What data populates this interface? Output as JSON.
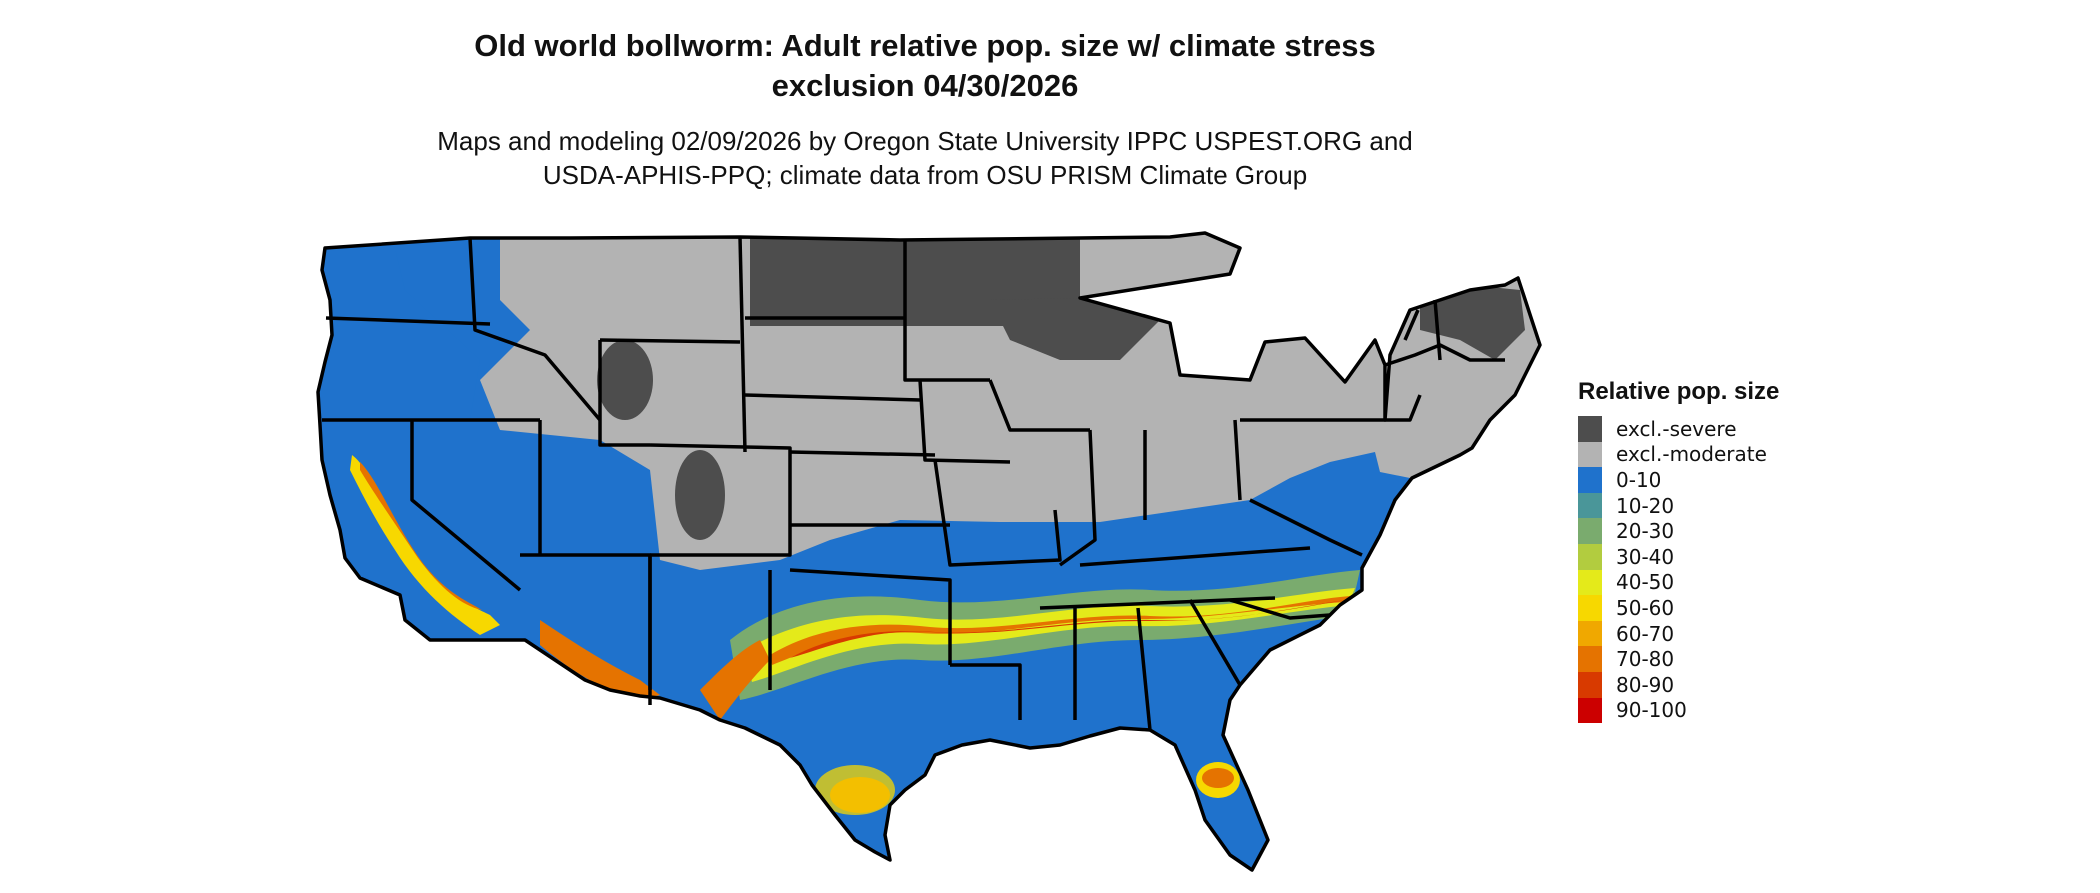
{
  "title": {
    "line1": "Old world bollworm: Adult relative pop. size w/ climate stress",
    "line2": "exclusion 04/30/2026"
  },
  "subtitle": {
    "line1": "Maps and modeling 02/09/2026 by Oregon State University IPPC USPEST.ORG and",
    "line2": "USDA-APHIS-PPQ; climate data from OSU PRISM Climate Group"
  },
  "legend": {
    "title": "Relative pop. size",
    "items": [
      {
        "label": "excl.-severe",
        "color": "#4d4d4d"
      },
      {
        "label": "excl.-moderate",
        "color": "#b3b3b3"
      },
      {
        "label": "0-10",
        "color": "#1f72cc"
      },
      {
        "label": "10-20",
        "color": "#4a9699"
      },
      {
        "label": "20-30",
        "color": "#7aab6e"
      },
      {
        "label": "30-40",
        "color": "#b2cc3f"
      },
      {
        "label": "40-50",
        "color": "#e4ea1a"
      },
      {
        "label": "50-60",
        "color": "#f7d800"
      },
      {
        "label": "60-70",
        "color": "#f0a800"
      },
      {
        "label": "70-80",
        "color": "#e57300"
      },
      {
        "label": "80-90",
        "color": "#d83a00"
      },
      {
        "label": "90-100",
        "color": "#cc0000"
      }
    ]
  },
  "map": {
    "region": "Contiguous United States",
    "colors": {
      "severe": "#4d4d4d",
      "moderate": "#b3b3b3",
      "low": "#1f72cc",
      "mid": "#7aab6e",
      "yellow": "#e4ea1a",
      "gold": "#f7d800",
      "orange": "#e57300",
      "red": "#d83a00",
      "border": "#000000"
    }
  }
}
